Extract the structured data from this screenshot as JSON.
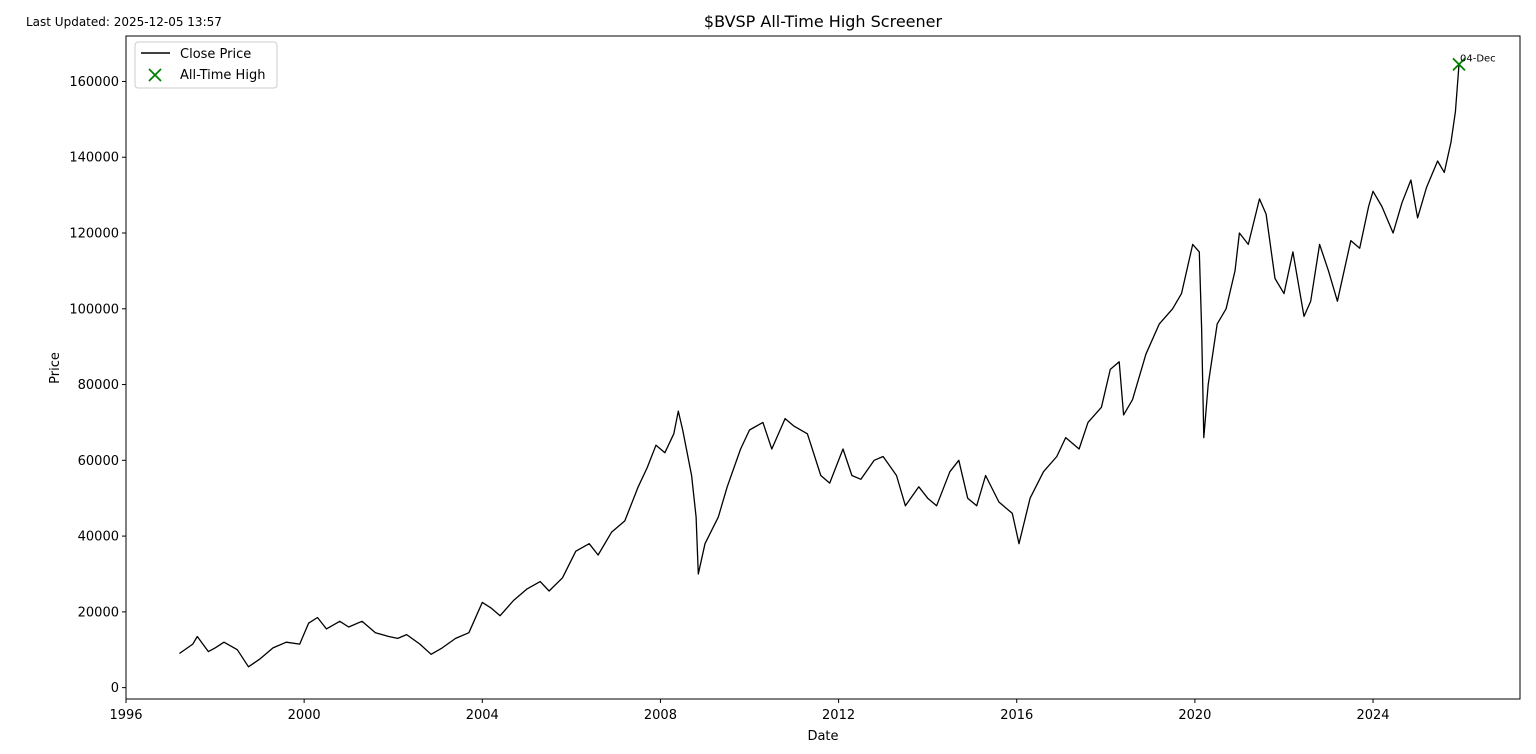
{
  "header": {
    "last_updated": "Last Updated: 2025-12-05 13:57"
  },
  "chart_data": {
    "type": "line",
    "title": "$BVSP All-Time High Screener",
    "xlabel": "Date",
    "ylabel": "Price",
    "xlim": [
      1996.0,
      2027.3
    ],
    "ylim": [
      -3000,
      172000
    ],
    "xticks": [
      1996,
      2000,
      2004,
      2008,
      2012,
      2016,
      2020,
      2024
    ],
    "yticks": [
      0,
      20000,
      40000,
      60000,
      80000,
      100000,
      120000,
      140000,
      160000
    ],
    "grid": false,
    "legend": {
      "placement": "top-left",
      "entries": [
        {
          "label": "Close Price",
          "marker": "line",
          "color": "#000000"
        },
        {
          "label": "All-Time High",
          "marker": "x",
          "color": "#008000"
        }
      ]
    },
    "series": [
      {
        "name": "Close Price",
        "color": "#000000",
        "points": [
          [
            1997.2,
            9000
          ],
          [
            1997.5,
            11500
          ],
          [
            1997.6,
            13500
          ],
          [
            1997.85,
            9500
          ],
          [
            1998.0,
            10500
          ],
          [
            1998.2,
            12000
          ],
          [
            1998.5,
            10000
          ],
          [
            1998.75,
            5500
          ],
          [
            1999.0,
            7500
          ],
          [
            1999.3,
            10500
          ],
          [
            1999.6,
            12000
          ],
          [
            1999.9,
            11500
          ],
          [
            2000.1,
            17000
          ],
          [
            2000.3,
            18500
          ],
          [
            2000.5,
            15500
          ],
          [
            2000.8,
            17500
          ],
          [
            2001.0,
            16000
          ],
          [
            2001.3,
            17500
          ],
          [
            2001.6,
            14500
          ],
          [
            2001.9,
            13500
          ],
          [
            2002.1,
            13000
          ],
          [
            2002.3,
            14000
          ],
          [
            2002.6,
            11500
          ],
          [
            2002.85,
            8800
          ],
          [
            2003.1,
            10500
          ],
          [
            2003.4,
            13000
          ],
          [
            2003.7,
            14500
          ],
          [
            2004.0,
            22500
          ],
          [
            2004.2,
            21000
          ],
          [
            2004.4,
            19000
          ],
          [
            2004.7,
            23000
          ],
          [
            2005.0,
            26000
          ],
          [
            2005.3,
            28000
          ],
          [
            2005.5,
            25500
          ],
          [
            2005.8,
            29000
          ],
          [
            2006.1,
            36000
          ],
          [
            2006.4,
            38000
          ],
          [
            2006.6,
            35000
          ],
          [
            2006.9,
            41000
          ],
          [
            2007.2,
            44000
          ],
          [
            2007.5,
            53000
          ],
          [
            2007.7,
            58000
          ],
          [
            2007.9,
            64000
          ],
          [
            2008.1,
            62000
          ],
          [
            2008.3,
            67000
          ],
          [
            2008.4,
            73000
          ],
          [
            2008.5,
            68000
          ],
          [
            2008.7,
            56000
          ],
          [
            2008.8,
            45000
          ],
          [
            2008.85,
            30000
          ],
          [
            2009.0,
            38000
          ],
          [
            2009.3,
            45000
          ],
          [
            2009.5,
            53000
          ],
          [
            2009.8,
            63000
          ],
          [
            2010.0,
            68000
          ],
          [
            2010.3,
            70000
          ],
          [
            2010.5,
            63000
          ],
          [
            2010.8,
            71000
          ],
          [
            2011.0,
            69000
          ],
          [
            2011.3,
            67000
          ],
          [
            2011.6,
            56000
          ],
          [
            2011.8,
            54000
          ],
          [
            2012.1,
            63000
          ],
          [
            2012.3,
            56000
          ],
          [
            2012.5,
            55000
          ],
          [
            2012.8,
            60000
          ],
          [
            2013.0,
            61000
          ],
          [
            2013.3,
            56000
          ],
          [
            2013.5,
            48000
          ],
          [
            2013.8,
            53000
          ],
          [
            2014.0,
            50000
          ],
          [
            2014.2,
            48000
          ],
          [
            2014.5,
            57000
          ],
          [
            2014.7,
            60000
          ],
          [
            2014.9,
            50000
          ],
          [
            2015.1,
            48000
          ],
          [
            2015.3,
            56000
          ],
          [
            2015.6,
            49000
          ],
          [
            2015.9,
            46000
          ],
          [
            2016.05,
            38000
          ],
          [
            2016.3,
            50000
          ],
          [
            2016.6,
            57000
          ],
          [
            2016.9,
            61000
          ],
          [
            2017.1,
            66000
          ],
          [
            2017.4,
            63000
          ],
          [
            2017.6,
            70000
          ],
          [
            2017.9,
            74000
          ],
          [
            2018.1,
            84000
          ],
          [
            2018.3,
            86000
          ],
          [
            2018.4,
            72000
          ],
          [
            2018.6,
            76000
          ],
          [
            2018.9,
            88000
          ],
          [
            2019.2,
            96000
          ],
          [
            2019.5,
            100000
          ],
          [
            2019.7,
            104000
          ],
          [
            2019.95,
            117000
          ],
          [
            2020.1,
            115000
          ],
          [
            2020.15,
            95000
          ],
          [
            2020.2,
            66000
          ],
          [
            2020.3,
            80000
          ],
          [
            2020.5,
            96000
          ],
          [
            2020.7,
            100000
          ],
          [
            2020.9,
            110000
          ],
          [
            2021.0,
            120000
          ],
          [
            2021.2,
            117000
          ],
          [
            2021.45,
            129000
          ],
          [
            2021.6,
            125000
          ],
          [
            2021.8,
            108000
          ],
          [
            2022.0,
            104000
          ],
          [
            2022.2,
            115000
          ],
          [
            2022.45,
            98000
          ],
          [
            2022.6,
            102000
          ],
          [
            2022.8,
            117000
          ],
          [
            2023.0,
            110000
          ],
          [
            2023.2,
            102000
          ],
          [
            2023.5,
            118000
          ],
          [
            2023.7,
            116000
          ],
          [
            2023.9,
            127000
          ],
          [
            2024.0,
            131000
          ],
          [
            2024.2,
            127000
          ],
          [
            2024.45,
            120000
          ],
          [
            2024.65,
            128000
          ],
          [
            2024.85,
            134000
          ],
          [
            2025.0,
            124000
          ],
          [
            2025.2,
            132000
          ],
          [
            2025.45,
            139000
          ],
          [
            2025.6,
            136000
          ],
          [
            2025.75,
            144000
          ],
          [
            2025.85,
            152000
          ],
          [
            2025.93,
            164500
          ]
        ]
      }
    ],
    "markers": [
      {
        "series": "All-Time High",
        "x": 2025.93,
        "y": 164500,
        "label": "04-Dec",
        "color": "#008000"
      }
    ]
  }
}
